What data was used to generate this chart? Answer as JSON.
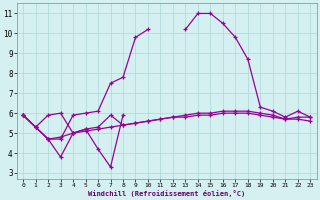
{
  "xlabel": "Windchill (Refroidissement éolien,°C)",
  "background_color": "#d5f0f0",
  "grid_color": "#aad8d8",
  "line_color": "#990099",
  "hours": [
    0,
    1,
    2,
    3,
    4,
    5,
    6,
    7,
    8,
    9,
    10,
    11,
    12,
    13,
    14,
    15,
    16,
    17,
    18,
    19,
    20,
    21,
    22,
    23
  ],
  "series_main": [
    5.9,
    5.3,
    4.7,
    4.7,
    5.9,
    6.0,
    6.1,
    7.5,
    7.8,
    9.8,
    10.2,
    null,
    null,
    10.2,
    11.0,
    11.0,
    10.5,
    9.8,
    8.7,
    6.3,
    6.1,
    5.8,
    6.1,
    5.8
  ],
  "series_flat1": [
    5.9,
    5.3,
    5.9,
    6.0,
    5.0,
    5.2,
    5.3,
    5.9,
    5.4,
    5.5,
    5.6,
    5.7,
    5.8,
    5.9,
    6.0,
    6.0,
    6.1,
    6.1,
    6.1,
    6.0,
    5.9,
    5.7,
    5.8,
    5.8
  ],
  "series_flat2": [
    5.9,
    5.3,
    4.7,
    4.8,
    5.0,
    5.1,
    5.2,
    5.3,
    5.4,
    5.5,
    5.6,
    5.7,
    5.8,
    5.8,
    5.9,
    5.9,
    6.0,
    6.0,
    6.0,
    5.9,
    5.8,
    5.7,
    5.7,
    5.6
  ],
  "series_jagged": [
    5.9,
    5.3,
    4.7,
    3.8,
    5.0,
    5.2,
    4.2,
    3.3,
    5.9,
    null,
    null,
    null,
    null,
    null,
    null,
    null,
    null,
    null,
    null,
    null,
    null,
    null,
    null,
    null
  ],
  "ylim": [
    2.7,
    11.5
  ],
  "yticks": [
    3,
    4,
    5,
    6,
    7,
    8,
    9,
    10,
    11
  ]
}
